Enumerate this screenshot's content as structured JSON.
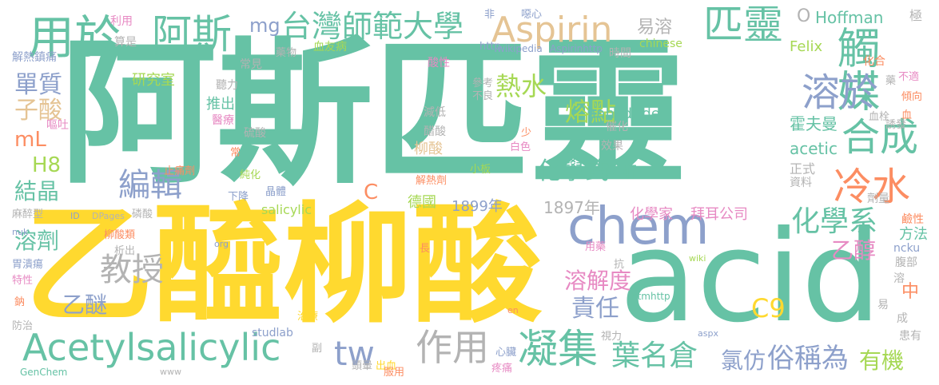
{
  "palette": {
    "green": "#66c2a5",
    "yellow": "#ffd92f",
    "blue": "#8da0cb",
    "orange": "#fc8d62",
    "pink": "#e78ac3",
    "lime": "#a6d854",
    "tan": "#e5c494",
    "gray": "#b3b3b3"
  },
  "words": [
    {
      "text": "阿斯匹靈",
      "color": "#66c2a5"
    },
    {
      "text": "乙醯柳酸",
      "color": "#ffd92f"
    },
    {
      "text": "acid",
      "color": "#66c2a5"
    },
    {
      "text": "chem",
      "color": "#8da0cb"
    },
    {
      "text": "Acetylsalicylic",
      "color": "#66c2a5"
    },
    {
      "text": "Aspirin",
      "color": "#e5c494"
    },
    {
      "text": "匹靈",
      "color": "#66c2a5"
    },
    {
      "text": "台灣師範大學",
      "color": "#66c2a5"
    },
    {
      "text": "用於",
      "color": "#66c2a5"
    },
    {
      "text": "阿斯",
      "color": "#66c2a5"
    },
    {
      "text": "觸媒",
      "color": "#66c2a5"
    },
    {
      "text": "溶於",
      "color": "#8da0cb"
    },
    {
      "text": "合成",
      "color": "#66c2a5"
    },
    {
      "text": "冷水",
      "color": "#fc8d62"
    },
    {
      "text": "凝集",
      "color": "#66c2a5"
    },
    {
      "text": "作用",
      "color": "#b3b3b3"
    },
    {
      "text": "tw",
      "color": "#8da0cb"
    },
    {
      "text": "葉名倉",
      "color": "#66c2a5"
    },
    {
      "text": "氯仿",
      "color": "#8da0cb"
    },
    {
      "text": "俗稱為",
      "color": "#8da0cb"
    },
    {
      "text": "有機",
      "color": "#a6d854"
    },
    {
      "text": "編輯",
      "color": "#8da0cb"
    },
    {
      "text": "教授",
      "color": "#b3b3b3"
    },
    {
      "text": "熱水",
      "color": "#a6d854"
    },
    {
      "text": "熔點",
      "color": "#a6d854"
    },
    {
      "text": "化學式",
      "color": "#66c2a5"
    },
    {
      "text": "化學系",
      "color": "#66c2a5"
    },
    {
      "text": "溶解度",
      "color": "#e78ac3"
    },
    {
      "text": "責任",
      "color": "#8da0cb"
    },
    {
      "text": "C9",
      "color": "#ffd92f"
    },
    {
      "text": "乙醇",
      "color": "#e78ac3"
    },
    {
      "text": "乙醚",
      "color": "#8da0cb"
    },
    {
      "text": "單質",
      "color": "#8da0cb"
    },
    {
      "text": "子酸",
      "color": "#e5c494"
    },
    {
      "text": "mL",
      "color": "#fc8d62"
    },
    {
      "text": "H8",
      "color": "#a6d854"
    },
    {
      "text": "結晶",
      "color": "#66c2a5"
    },
    {
      "text": "溶劑",
      "color": "#66c2a5"
    },
    {
      "text": "mg",
      "color": "#8da0cb"
    },
    {
      "text": "易溶",
      "color": "#b3b3b3"
    },
    {
      "text": "Hoffman",
      "color": "#66c2a5"
    },
    {
      "text": "O",
      "color": "#b3b3b3"
    },
    {
      "text": "Felix",
      "color": "#a6d854"
    },
    {
      "text": "霍夫曼",
      "color": "#66c2a5"
    },
    {
      "text": "acetic",
      "color": "#66c2a5"
    },
    {
      "text": "anhydride",
      "color": "#66c2a5"
    },
    {
      "text": "醋酸酐",
      "color": "#66c2a5"
    },
    {
      "text": "化學家",
      "color": "#e78ac3"
    },
    {
      "text": "拜耳公司",
      "color": "#e78ac3"
    },
    {
      "text": "1899年",
      "color": "#8da0cb"
    },
    {
      "text": "1897年",
      "color": "#b3b3b3"
    },
    {
      "text": "德國",
      "color": "#a6d854"
    },
    {
      "text": "salicylic",
      "color": "#a6d854"
    },
    {
      "text": "柳酸",
      "color": "#e5c494"
    },
    {
      "text": "研究室",
      "color": "#a6d854"
    },
    {
      "text": "推出",
      "color": "#66c2a5"
    },
    {
      "text": "C",
      "color": "#fc8d62"
    },
    {
      "text": "中",
      "color": "#fc8d62"
    },
    {
      "text": "方法",
      "color": "#66c2a5"
    },
    {
      "text": "正式",
      "color": "#b3b3b3"
    },
    {
      "text": "chinese",
      "color": "#a6d854"
    },
    {
      "text": "極",
      "color": "#b3b3b3"
    },
    {
      "text": "易",
      "color": "#b3b3b3"
    },
    {
      "text": "成",
      "color": "#b3b3b3"
    },
    {
      "text": "患有",
      "color": "#b3b3b3"
    },
    {
      "text": "溶",
      "color": "#b3b3b3"
    },
    {
      "text": "腹部",
      "color": "#b3b3b3"
    },
    {
      "text": "鹼性",
      "color": "#fc8d62"
    },
    {
      "text": "劑量",
      "color": "#b3b3b3"
    },
    {
      "text": "ncku",
      "color": "#8da0cb"
    },
    {
      "text": "資料",
      "color": "#b3b3b3"
    },
    {
      "text": "化合",
      "color": "#fc8d62"
    },
    {
      "text": "時間",
      "color": "#b3b3b3"
    },
    {
      "text": "血友病",
      "color": "#a6d854"
    },
    {
      "text": "http",
      "color": "#8da0cb"
    },
    {
      "text": "wikipedia",
      "color": "#8da0cb"
    },
    {
      "text": "Aspirinhttp",
      "color": "#8da0cb"
    },
    {
      "text": "參考",
      "color": "#b3b3b3"
    },
    {
      "text": "不良",
      "color": "#b3b3b3"
    },
    {
      "text": "利用",
      "color": "#e78ac3"
    },
    {
      "text": "算是",
      "color": "#b3b3b3"
    },
    {
      "text": "解熱鎮痛",
      "color": "#8da0cb"
    },
    {
      "text": "常見",
      "color": "#b3b3b3"
    },
    {
      "text": "藥物",
      "color": "#b3b3b3"
    },
    {
      "text": "酸性",
      "color": "#e78ac3"
    },
    {
      "text": "聽力",
      "color": "#b3b3b3"
    },
    {
      "text": "醫療",
      "color": "#e78ac3"
    },
    {
      "text": "硫酸",
      "color": "#b3b3b3"
    },
    {
      "text": "減低",
      "color": "#b3b3b3"
    },
    {
      "text": "醋酸",
      "color": "#b3b3b3"
    },
    {
      "text": "催化",
      "color": "#b3b3b3"
    },
    {
      "text": "效果",
      "color": "#b3b3b3"
    },
    {
      "text": "嘔吐",
      "color": "#e78ac3"
    },
    {
      "text": "止痛劑",
      "color": "#fc8d62"
    },
    {
      "text": "解熱劑",
      "color": "#fc8d62"
    },
    {
      "text": "純化",
      "color": "#a6d854"
    },
    {
      "text": "下降",
      "color": "#8da0cb"
    },
    {
      "text": "晶體",
      "color": "#8da0cb"
    },
    {
      "text": "麻醉型",
      "color": "#b3b3b3"
    },
    {
      "text": "ID",
      "color": "#8da0cb"
    },
    {
      "text": "DPages",
      "color": "#b3b3b3"
    },
    {
      "text": "磷酸",
      "color": "#b3b3b3"
    },
    {
      "text": "柳酸類",
      "color": "#fc8d62"
    },
    {
      "text": "析出",
      "color": "#b3b3b3"
    },
    {
      "text": "胃潰瘍",
      "color": "#8da0cb"
    },
    {
      "text": "特性",
      "color": "#e78ac3"
    },
    {
      "text": "鈉",
      "color": "#fc8d62"
    },
    {
      "text": "防治",
      "color": "#b3b3b3"
    },
    {
      "text": "studlab",
      "color": "#8da0cb"
    },
    {
      "text": "GenChem",
      "color": "#66c2a5"
    },
    {
      "text": "www",
      "color": "#b3b3b3"
    },
    {
      "text": "副",
      "color": "#b3b3b3"
    },
    {
      "text": "頭暈",
      "color": "#b3b3b3"
    },
    {
      "text": "出血",
      "color": "#ffd92f"
    },
    {
      "text": "服用",
      "color": "#fc8d62"
    },
    {
      "text": "心臟",
      "color": "#8da0cb"
    },
    {
      "text": "疼痛",
      "color": "#e78ac3"
    },
    {
      "text": "視力",
      "color": "#b3b3b3"
    },
    {
      "text": "aspx",
      "color": "#8da0cb"
    },
    {
      "text": "治療",
      "color": "#ffd92f"
    },
    {
      "text": "htmhttp",
      "color": "#66c2a5"
    },
    {
      "text": "en",
      "color": "#fc8d62"
    },
    {
      "text": "抗",
      "color": "#b3b3b3"
    },
    {
      "text": "用藥",
      "color": "#e78ac3"
    },
    {
      "text": "wiki",
      "color": "#a6d854"
    },
    {
      "text": "org",
      "color": "#8da0cb"
    },
    {
      "text": "長",
      "color": "#fc8d62"
    },
    {
      "text": "nuk",
      "color": "#8da0cb"
    },
    {
      "text": "常",
      "color": "#fc8d62"
    },
    {
      "text": "少",
      "color": "#fc8d62"
    },
    {
      "text": "白色",
      "color": "#e78ac3"
    },
    {
      "text": "小板",
      "color": "#a6d854"
    },
    {
      "text": "血栓",
      "color": "#b3b3b3"
    },
    {
      "text": "誘發",
      "color": "#b3b3b3"
    },
    {
      "text": "血",
      "color": "#fc8d62"
    },
    {
      "text": "傾向",
      "color": "#fc8d62"
    },
    {
      "text": "不適",
      "color": "#e78ac3"
    },
    {
      "text": "藥",
      "color": "#b3b3b3"
    },
    {
      "text": "非",
      "color": "#8da0cb"
    },
    {
      "text": "噁心",
      "color": "#8da0cb"
    }
  ]
}
